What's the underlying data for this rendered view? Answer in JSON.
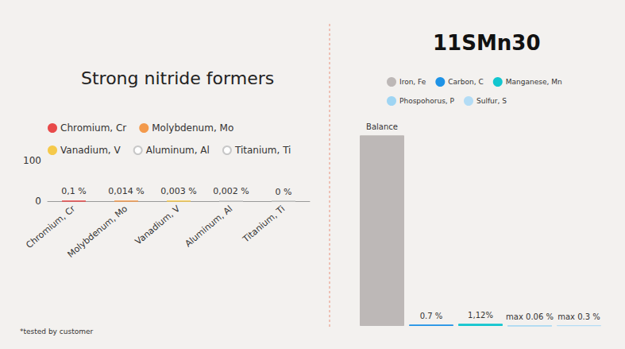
{
  "chart_data": [
    {
      "type": "bar",
      "title": "Strong nitride formers",
      "categories": [
        "Chromium, Cr",
        "Molybdenum, Mo",
        "Vanadium, V",
        "Aluminum, Al",
        "Titanium, Ti"
      ],
      "values": [
        0.1,
        0.014,
        0.003,
        0.002,
        0
      ],
      "value_labels": [
        "0,1 %",
        "0,014 %",
        "0,003 %",
        "0,002 %",
        "0 %"
      ],
      "colors": [
        "#e84a4a",
        "#f39a4c",
        "#f5c94a",
        "#ffffff",
        "#ffffff"
      ],
      "ylim": [
        0,
        100
      ],
      "yticks": [
        0,
        100
      ],
      "grid": false,
      "legend": "top",
      "data_labels": true,
      "footnote": "*tested by customer"
    },
    {
      "type": "bar",
      "title": "11SMn30",
      "categories": [
        "Iron, Fe",
        "Carbon, C",
        "Manganese, Mn",
        "Phospohorus, P",
        "Sulfur, S"
      ],
      "values": [
        97.82,
        0.7,
        1.12,
        0.06,
        0.3
      ],
      "value_labels": [
        "Balance",
        "0.7 %",
        "1,12%",
        "max 0.06 %",
        "max 0.3 %"
      ],
      "colors": [
        "#bdb8b7",
        "#1f93e6",
        "#13c6cf",
        "#9fd5f3",
        "#b3dcf5"
      ],
      "ylim": [
        0,
        100
      ],
      "grid": false,
      "legend": "top",
      "data_labels": true,
      "tick_labels": false
    }
  ]
}
